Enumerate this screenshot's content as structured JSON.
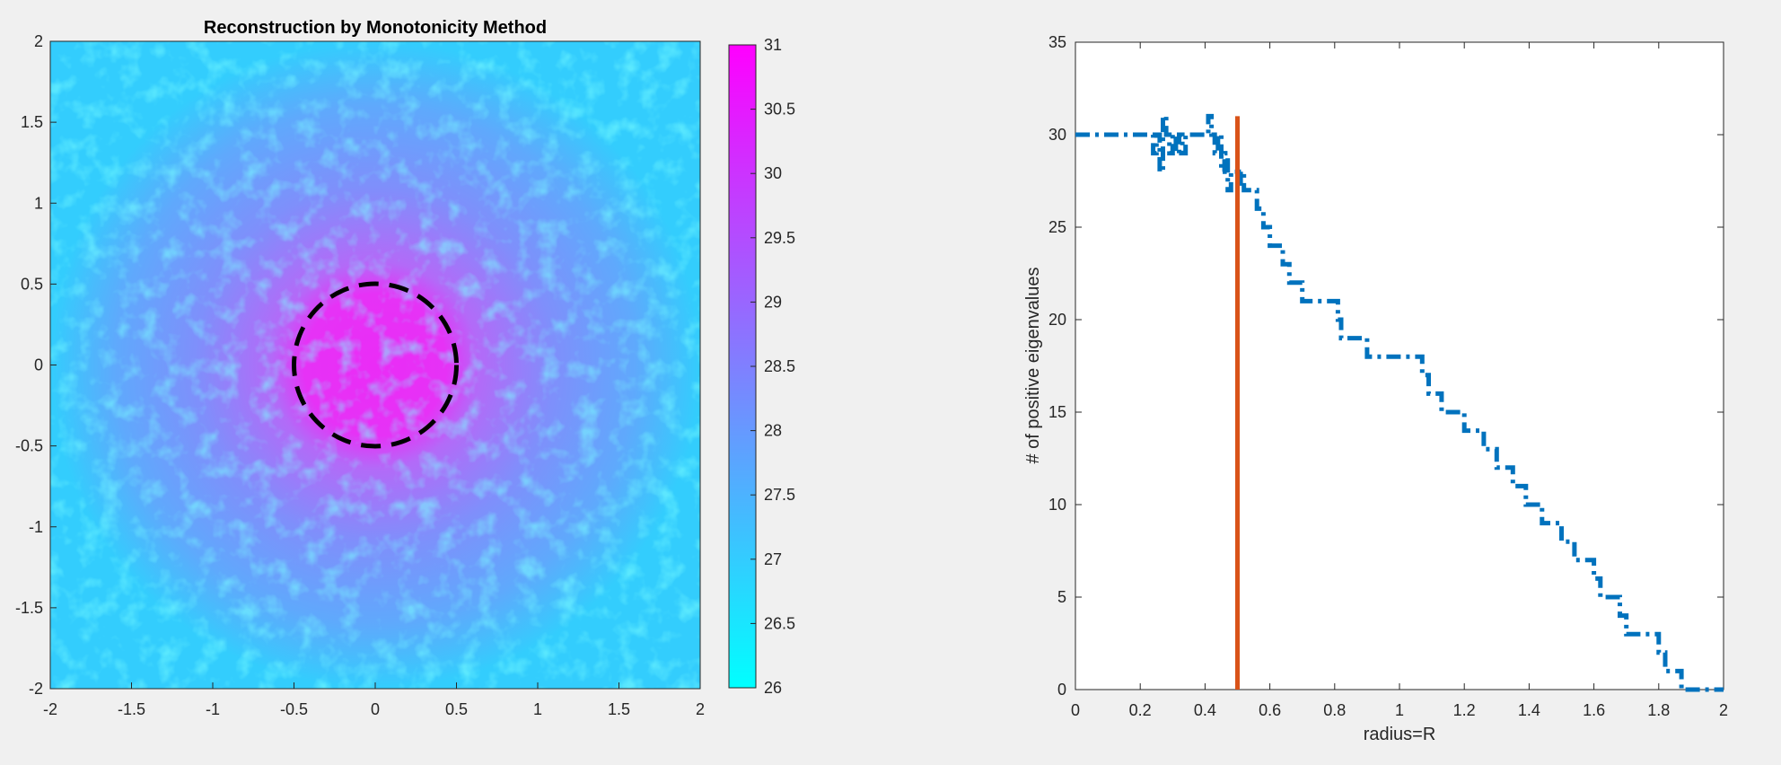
{
  "chart_data": [
    {
      "type": "heatmap",
      "title": "Reconstruction by Monotonicity Method",
      "xlabel": "",
      "ylabel": "",
      "xlim": [
        -2,
        2
      ],
      "ylim": [
        -2,
        2
      ],
      "x_ticks": [
        "-2",
        "-1.5",
        "-1",
        "-0.5",
        "0",
        "0.5",
        "1",
        "1.5",
        "2"
      ],
      "y_ticks": [
        "2",
        "1.5",
        "1",
        "0.5",
        "0",
        "-0.5",
        "-1",
        "-1.5",
        "-2"
      ],
      "colorbar": {
        "range": [
          26,
          31
        ],
        "ticks": [
          "31",
          "30.5",
          "30",
          "29.5",
          "29",
          "28.5",
          "28",
          "27.5",
          "27",
          "26.5",
          "26"
        ],
        "colors": [
          "#00ffff",
          "#ff00ff"
        ]
      },
      "annotation": {
        "shape": "circle",
        "center": [
          0,
          0
        ],
        "radius": 0.5,
        "style": "dashed",
        "color": "#000000"
      },
      "grid": false
    },
    {
      "type": "line",
      "title": "",
      "xlabel": "radius=R",
      "ylabel": "# of positive eigenvalues",
      "xlim": [
        0,
        2
      ],
      "ylim": [
        0,
        35
      ],
      "x_ticks": [
        "0",
        "0.2",
        "0.4",
        "0.6",
        "0.8",
        "1",
        "1.2",
        "1.4",
        "1.6",
        "1.8",
        "2"
      ],
      "y_ticks": [
        "0",
        "5",
        "10",
        "15",
        "20",
        "25",
        "30",
        "35"
      ],
      "grid": false,
      "series": [
        {
          "style": "dash-dot",
          "color": "#0072bd",
          "x": [
            0,
            0.23,
            0.24,
            0.25,
            0.26,
            0.27,
            0.28,
            0.29,
            0.3,
            0.31,
            0.32,
            0.33,
            0.34,
            0.35,
            0.36,
            0.4,
            0.41,
            0.42,
            0.43,
            0.44,
            0.45,
            0.46,
            0.47,
            0.48,
            0.5,
            0.51,
            0.52,
            0.55,
            0.56,
            0.58,
            0.6,
            0.62,
            0.64,
            0.66,
            0.68,
            0.7,
            0.72,
            0.75,
            0.81,
            0.82,
            0.86,
            0.9,
            0.96,
            1.07,
            1.09,
            1.13,
            1.2,
            1.26,
            1.3,
            1.35,
            1.39,
            1.44,
            1.5,
            1.54,
            1.6,
            1.62,
            1.68,
            1.7,
            1.75,
            1.8,
            1.82,
            1.86,
            1.87,
            1.9,
            2.0
          ],
          "y": [
            30,
            30,
            29,
            30,
            28,
            31,
            30,
            29,
            30,
            29,
            30,
            29,
            30,
            30,
            30,
            30,
            31,
            30,
            29,
            30,
            28,
            29,
            27,
            28,
            27,
            28,
            27,
            27,
            26,
            25,
            24,
            24,
            23,
            22,
            22,
            21,
            21,
            21,
            20,
            19,
            19,
            18,
            18,
            17,
            16,
            15,
            14,
            13,
            12,
            11,
            10,
            9,
            8,
            7,
            6,
            5,
            4,
            3,
            3,
            2,
            1,
            1,
            0,
            0,
            0
          ]
        },
        {
          "style": "solid",
          "color": "#d95319",
          "x": [
            0.5,
            0.5
          ],
          "y": [
            0,
            31
          ]
        }
      ]
    }
  ]
}
